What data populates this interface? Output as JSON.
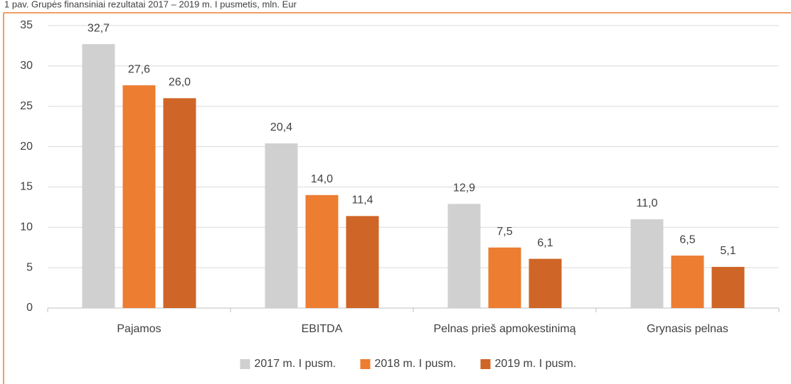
{
  "chart_data": {
    "type": "bar",
    "title": "1 pav. Grupės finansiniai rezultatai 2017 – 2019 m. I pusmetis, mln. Eur",
    "categories": [
      "Pajamos",
      "EBITDA",
      "Pelnas prieš apmokestinimą",
      "Grynasis pelnas"
    ],
    "series": [
      {
        "name": "2017 m. I pusm.",
        "color": "#d0d0d0",
        "values": [
          32.7,
          20.4,
          12.9,
          11.0
        ],
        "value_labels": [
          "32,7",
          "20,4",
          "12,9",
          "11,0"
        ]
      },
      {
        "name": "2018 m. I pusm.",
        "color": "#ed7d31",
        "values": [
          27.6,
          14.0,
          7.5,
          6.5
        ],
        "value_labels": [
          "27,6",
          "14,0",
          "7,5",
          "6,5"
        ]
      },
      {
        "name": "2019 m. I pusm.",
        "color": "#cf6527",
        "values": [
          26.0,
          11.4,
          6.1,
          5.1
        ],
        "value_labels": [
          "26,0",
          "11,4",
          "6,1",
          "5,1"
        ]
      }
    ],
    "ylim": [
      0,
      35
    ],
    "yticks": [
      0,
      5,
      10,
      15,
      20,
      25,
      30,
      35
    ],
    "grid": true,
    "legend": "bottom"
  }
}
